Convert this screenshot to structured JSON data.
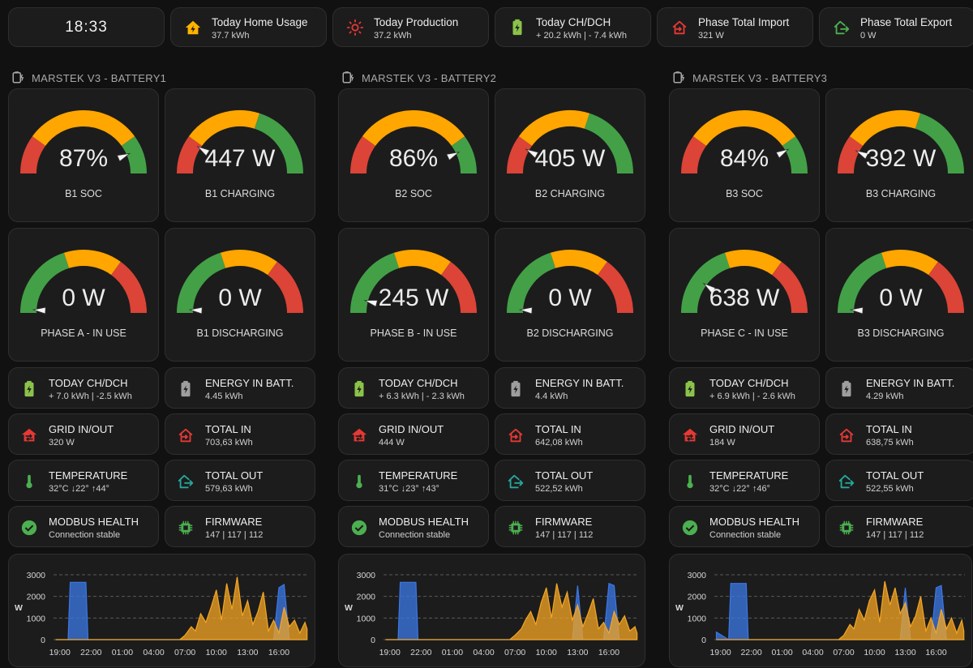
{
  "header": {
    "clock": "18:33",
    "tiles": [
      {
        "name": "Today Home Usage",
        "state": "37.7 kWh",
        "icon": "home-lightning-icon",
        "color": "#ffb300"
      },
      {
        "name": "Today Production",
        "state": "37.2 kWh",
        "icon": "sun-icon",
        "color": "#e53935"
      },
      {
        "name": "Today CH/DCH",
        "state": "+ 20.2 kWh | - 7.4 kWh",
        "icon": "battery-charging-icon",
        "color": "#8bc34a"
      },
      {
        "name": "Phase Total Import",
        "state": "321 W",
        "icon": "home-import-icon",
        "color": "#e53935"
      },
      {
        "name": "Phase Total Export",
        "state": "0 W",
        "icon": "home-export-icon",
        "color": "#4caf50"
      }
    ]
  },
  "batteries": [
    {
      "title": "MARSTEK V3 - BATTERY1",
      "gauges": [
        {
          "value": "87%",
          "name": "B1 SOC",
          "level": 0.87,
          "kind": "soc"
        },
        {
          "value": "447 W",
          "name": "B1 CHARGING",
          "level": 0.18,
          "kind": "rev"
        },
        {
          "value": "0 W",
          "name": "PHASE A - IN USE",
          "level": 0.0,
          "kind": "fwd"
        },
        {
          "value": "0 W",
          "name": "B1 DISCHARGING",
          "level": 0.0,
          "kind": "fwd"
        }
      ],
      "entities": [
        {
          "name": "TODAY CH/DCH",
          "state": "+ 7.0 kWh | -2.5 kWh",
          "icon": "battery-charging-icon"
        },
        {
          "name": "ENERGY IN BATT.",
          "state": "4.45 kWh",
          "icon": "battery-bolt-icon"
        },
        {
          "name": "GRID IN/OUT",
          "state": "320 W",
          "icon": "home-switch-icon"
        },
        {
          "name": "TOTAL IN",
          "state": "703,63 kWh",
          "icon": "home-import-icon"
        },
        {
          "name": "TEMPERATURE",
          "state": "32°C ↓22° ↑44°",
          "icon": "thermometer-icon"
        },
        {
          "name": "TOTAL OUT",
          "state": "579,63 kWh",
          "icon": "home-export-icon"
        },
        {
          "name": "MODBUS HEALTH",
          "state": "Connection stable",
          "icon": "check-circle-icon"
        },
        {
          "name": "FIRMWARE",
          "state": "147 | 117 | 112",
          "icon": "chip-icon"
        }
      ]
    },
    {
      "title": "MARSTEK V3 - BATTERY2",
      "gauges": [
        {
          "value": "86%",
          "name": "B2 SOC",
          "level": 0.86,
          "kind": "soc"
        },
        {
          "value": "405 W",
          "name": "B2 CHARGING",
          "level": 0.16,
          "kind": "rev"
        },
        {
          "value": "245 W",
          "name": "PHASE B - IN USE",
          "level": 0.08,
          "kind": "fwd"
        },
        {
          "value": "0 W",
          "name": "B2 DISCHARGING",
          "level": 0.0,
          "kind": "fwd"
        }
      ],
      "entities": [
        {
          "name": "TODAY CH/DCH",
          "state": "+ 6.3 kWh | - 2.3 kWh",
          "icon": "battery-charging-icon"
        },
        {
          "name": "ENERGY IN BATT.",
          "state": "4.4 kWh",
          "icon": "battery-bolt-icon"
        },
        {
          "name": "GRID IN/OUT",
          "state": "444 W",
          "icon": "home-switch-icon"
        },
        {
          "name": "TOTAL IN",
          "state": "642,08 kWh",
          "icon": "home-import-icon"
        },
        {
          "name": "TEMPERATURE",
          "state": "31°C ↓23° ↑43°",
          "icon": "thermometer-icon"
        },
        {
          "name": "TOTAL OUT",
          "state": "522,52 kWh",
          "icon": "home-export-icon"
        },
        {
          "name": "MODBUS HEALTH",
          "state": "Connection stable",
          "icon": "check-circle-icon"
        },
        {
          "name": "FIRMWARE",
          "state": "147 | 117 | 112",
          "icon": "chip-icon"
        }
      ]
    },
    {
      "title": "MARSTEK V3 - BATTERY3",
      "gauges": [
        {
          "value": "84%",
          "name": "B3 SOC",
          "level": 0.84,
          "kind": "soc"
        },
        {
          "value": "392 W",
          "name": "B3 CHARGING",
          "level": 0.15,
          "kind": "rev"
        },
        {
          "value": "638 W",
          "name": "PHASE C - IN USE",
          "level": 0.2,
          "kind": "fwd"
        },
        {
          "value": "0 W",
          "name": "B3 DISCHARGING",
          "level": 0.0,
          "kind": "fwd"
        }
      ],
      "entities": [
        {
          "name": "TODAY CH/DCH",
          "state": "+ 6.9 kWh | - 2.6 kWh",
          "icon": "battery-charging-icon"
        },
        {
          "name": "ENERGY IN BATT.",
          "state": "4.29 kWh",
          "icon": "battery-bolt-icon"
        },
        {
          "name": "GRID IN/OUT",
          "state": "184 W",
          "icon": "home-switch-icon"
        },
        {
          "name": "TOTAL IN",
          "state": "638,75 kWh",
          "icon": "home-import-icon"
        },
        {
          "name": "TEMPERATURE",
          "state": "32°C ↓22° ↑46°",
          "icon": "thermometer-icon"
        },
        {
          "name": "TOTAL OUT",
          "state": "522,55 kWh",
          "icon": "home-export-icon"
        },
        {
          "name": "MODBUS HEALTH",
          "state": "Connection stable",
          "icon": "check-circle-icon"
        },
        {
          "name": "FIRMWARE",
          "state": "147 | 117 | 112",
          "icon": "chip-icon"
        }
      ]
    }
  ],
  "colors": {
    "green": "#43a047",
    "orange": "#ffa600",
    "red": "#db4437",
    "charge_series": "#3b78e7",
    "solar_series": "#f5a623",
    "icon_green": "#8bc34a",
    "icon_red": "#e53935",
    "icon_teal": "#26a69a",
    "icon_grey": "#9e9e9e",
    "icon_check": "#4caf50"
  },
  "chart_data": [
    {
      "type": "area",
      "ylabel": "W",
      "yticks": [
        "0",
        "1000",
        "2000",
        "3000"
      ],
      "ylim": [
        0,
        3000
      ],
      "xticks": [
        "19:00",
        "22:00",
        "01:00",
        "04:00",
        "07:00",
        "10:00",
        "13:00",
        "16:00"
      ],
      "x_hours": [
        18.6,
        19.8,
        20.0,
        21.5,
        21.7,
        23.0,
        26.0,
        29.0,
        30.5,
        31.0,
        31.6,
        32.0,
        32.5,
        33.0,
        33.5,
        34.0,
        34.5,
        35.0,
        35.5,
        36.0,
        36.5,
        37.0,
        37.5,
        38.0,
        38.5,
        39.0,
        39.5,
        40.0,
        40.5,
        41.0,
        41.5,
        42.0,
        42.5,
        42.7
      ],
      "series": [
        {
          "values": [
            0,
            0,
            2650,
            2650,
            0,
            0,
            0,
            0,
            0,
            0,
            0,
            0,
            0,
            0,
            0,
            0,
            0,
            0,
            0,
            0,
            0,
            0,
            0,
            0,
            0,
            0,
            0,
            2400,
            2550,
            0,
            0,
            0,
            0,
            0
          ]
        },
        {
          "values": [
            0,
            0,
            0,
            0,
            0,
            0,
            0,
            0,
            0,
            200,
            600,
            400,
            1200,
            800,
            1500,
            2300,
            900,
            2600,
            1400,
            2900,
            1100,
            1800,
            700,
            1300,
            2200,
            400,
            900,
            300,
            1500,
            600,
            900,
            300,
            800,
            500
          ]
        }
      ]
    },
    {
      "type": "area",
      "ylabel": "W",
      "yticks": [
        "0",
        "1000",
        "2000",
        "3000"
      ],
      "ylim": [
        0,
        3000
      ],
      "xticks": [
        "19:00",
        "22:00",
        "01:00",
        "04:00",
        "07:00",
        "10:00",
        "13:00",
        "16:00"
      ],
      "x_hours": [
        18.6,
        19.8,
        20.0,
        21.5,
        21.7,
        23.0,
        26.0,
        29.0,
        30.5,
        31.0,
        31.6,
        32.0,
        32.5,
        33.0,
        33.5,
        34.0,
        34.5,
        35.0,
        35.5,
        36.0,
        36.5,
        37.0,
        37.5,
        38.0,
        38.5,
        39.0,
        39.5,
        40.0,
        40.5,
        41.0,
        41.5,
        42.0,
        42.5,
        42.7
      ],
      "series": [
        {
          "values": [
            0,
            0,
            2650,
            2650,
            0,
            0,
            0,
            0,
            0,
            0,
            0,
            0,
            0,
            0,
            0,
            0,
            0,
            0,
            0,
            0,
            0,
            2500,
            0,
            0,
            0,
            0,
            0,
            2600,
            2500,
            0,
            0,
            0,
            0,
            0
          ]
        },
        {
          "values": [
            0,
            0,
            0,
            0,
            0,
            0,
            0,
            0,
            0,
            200,
            500,
            900,
            1300,
            700,
            1700,
            2400,
            1000,
            2600,
            1500,
            2200,
            900,
            1600,
            600,
            1200,
            1900,
            500,
            800,
            300,
            1300,
            700,
            1100,
            400,
            600,
            300
          ]
        }
      ]
    },
    {
      "type": "area",
      "ylabel": "W",
      "yticks": [
        "0",
        "1000",
        "2000",
        "3000"
      ],
      "ylim": [
        0,
        3000
      ],
      "xticks": [
        "19:00",
        "22:00",
        "01:00",
        "04:00",
        "07:00",
        "10:00",
        "13:00",
        "16:00"
      ],
      "x_hours": [
        18.6,
        19.8,
        20.0,
        21.5,
        21.7,
        23.0,
        26.0,
        29.0,
        30.5,
        31.0,
        31.6,
        32.0,
        32.5,
        33.0,
        33.5,
        34.0,
        34.5,
        35.0,
        35.5,
        36.0,
        36.5,
        37.0,
        37.5,
        38.0,
        38.5,
        39.0,
        39.5,
        40.0,
        40.5,
        41.0,
        41.5,
        42.0,
        42.5,
        42.7
      ],
      "series": [
        {
          "values": [
            350,
            0,
            2600,
            2600,
            0,
            0,
            0,
            0,
            0,
            0,
            0,
            0,
            0,
            0,
            0,
            0,
            0,
            0,
            0,
            0,
            0,
            2400,
            0,
            0,
            0,
            0,
            0,
            2400,
            2500,
            0,
            0,
            0,
            0,
            0
          ]
        },
        {
          "values": [
            0,
            0,
            0,
            0,
            0,
            0,
            0,
            0,
            0,
            200,
            700,
            500,
            1400,
            900,
            1800,
            2300,
            800,
            2700,
            1600,
            2400,
            1200,
            1700,
            600,
            1100,
            2000,
            400,
            1000,
            300,
            1400,
            500,
            1000,
            300,
            900,
            400
          ]
        }
      ]
    }
  ]
}
